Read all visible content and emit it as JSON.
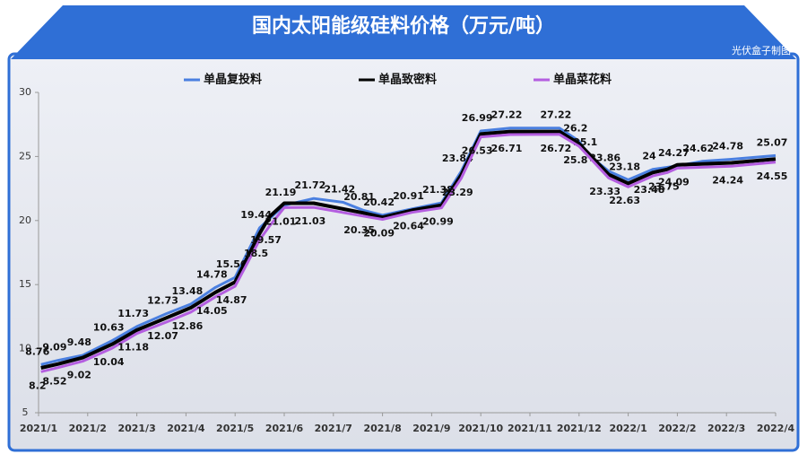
{
  "chart_data": {
    "type": "line",
    "title": "国内太阳能级硅料价格（万元/吨）",
    "subtitle": "光伏盒子制图",
    "xlim": [
      0,
      15
    ],
    "xticks": [
      {
        "value": 0,
        "label": "2021/1"
      },
      {
        "value": 1,
        "label": "2021/2"
      },
      {
        "value": 2,
        "label": "2021/3"
      },
      {
        "value": 3,
        "label": "2021/4"
      },
      {
        "value": 4,
        "label": "2021/5"
      },
      {
        "value": 5,
        "label": "2021/6"
      },
      {
        "value": 6,
        "label": "2021/7"
      },
      {
        "value": 7,
        "label": "2021/8"
      },
      {
        "value": 8,
        "label": "2021/9"
      },
      {
        "value": 9,
        "label": "2021/10"
      },
      {
        "value": 10,
        "label": "2021/11"
      },
      {
        "value": 11,
        "label": "2021/12"
      },
      {
        "value": 12,
        "label": "2022/1"
      },
      {
        "value": 13,
        "label": "2022/2"
      },
      {
        "value": 14,
        "label": "2022/3"
      },
      {
        "value": 15,
        "label": "2022/4"
      }
    ],
    "ylim": [
      5,
      30
    ],
    "yticks": [
      5,
      10,
      15,
      20,
      25,
      30
    ],
    "series": [
      {
        "name": "单晶复投料",
        "color": "#4a7fe0",
        "data_labels": true,
        "x": [
          0.05,
          0.4,
          0.9,
          1.5,
          2.0,
          2.6,
          3.1,
          3.6,
          4.0,
          4.5,
          5.0,
          5.6,
          6.2,
          6.6,
          7.0,
          7.6,
          8.2,
          8.6,
          9.0,
          9.6,
          10.6,
          11.0,
          11.2,
          11.6,
          12.0,
          12.5,
          13.0,
          13.5,
          14.1,
          15.0
        ],
        "values": [
          8.76,
          9.09,
          9.48,
          10.63,
          11.73,
          12.73,
          13.48,
          14.78,
          15.56,
          19.44,
          21.19,
          21.72,
          21.42,
          20.81,
          20.42,
          20.91,
          21.38,
          23.84,
          26.99,
          27.22,
          27.22,
          26.2,
          25.1,
          23.86,
          23.18,
          24,
          24.27,
          24.62,
          24.78,
          25.07
        ]
      },
      {
        "name": "单晶致密料",
        "color": "#000000",
        "data_labels": false,
        "x": [
          0.05,
          0.4,
          0.9,
          1.5,
          2.0,
          2.6,
          3.1,
          3.6,
          4.0,
          4.5,
          4.7,
          5.0,
          5.6,
          6.6,
          7.0,
          7.6,
          8.2,
          8.6,
          9.0,
          9.6,
          10.6,
          11.0,
          11.6,
          12.0,
          12.5,
          12.8,
          13.0,
          14.1,
          15.0
        ],
        "values": [
          8.5,
          8.8,
          9.3,
          10.35,
          11.45,
          12.4,
          13.2,
          14.4,
          15.2,
          19.0,
          20.3,
          21.35,
          21.35,
          20.6,
          20.25,
          20.8,
          21.2,
          23.55,
          26.75,
          26.95,
          26.95,
          26.0,
          23.6,
          22.9,
          23.75,
          24.0,
          24.35,
          24.5,
          24.8
        ]
      },
      {
        "name": "单晶菜花料",
        "color": "#b45ee0",
        "data_labels": true,
        "x": [
          0.05,
          0.4,
          0.9,
          1.5,
          2.0,
          2.6,
          3.1,
          3.6,
          4.0,
          4.5,
          4.7,
          5.0,
          5.6,
          6.6,
          7.0,
          7.6,
          8.2,
          8.6,
          9.0,
          9.6,
          10.6,
          11.0,
          11.6,
          12.0,
          12.5,
          12.8,
          13.0,
          14.1,
          15.0
        ],
        "values": [
          8.2,
          8.52,
          9.02,
          10.04,
          11.18,
          12.07,
          12.86,
          14.05,
          14.87,
          18.5,
          19.57,
          21.01,
          21.03,
          20.35,
          20.09,
          20.64,
          20.99,
          23.29,
          26.53,
          26.71,
          26.72,
          25.8,
          23.33,
          22.63,
          23.48,
          23.75,
          24.09,
          24.24,
          24.55
        ]
      }
    ]
  }
}
